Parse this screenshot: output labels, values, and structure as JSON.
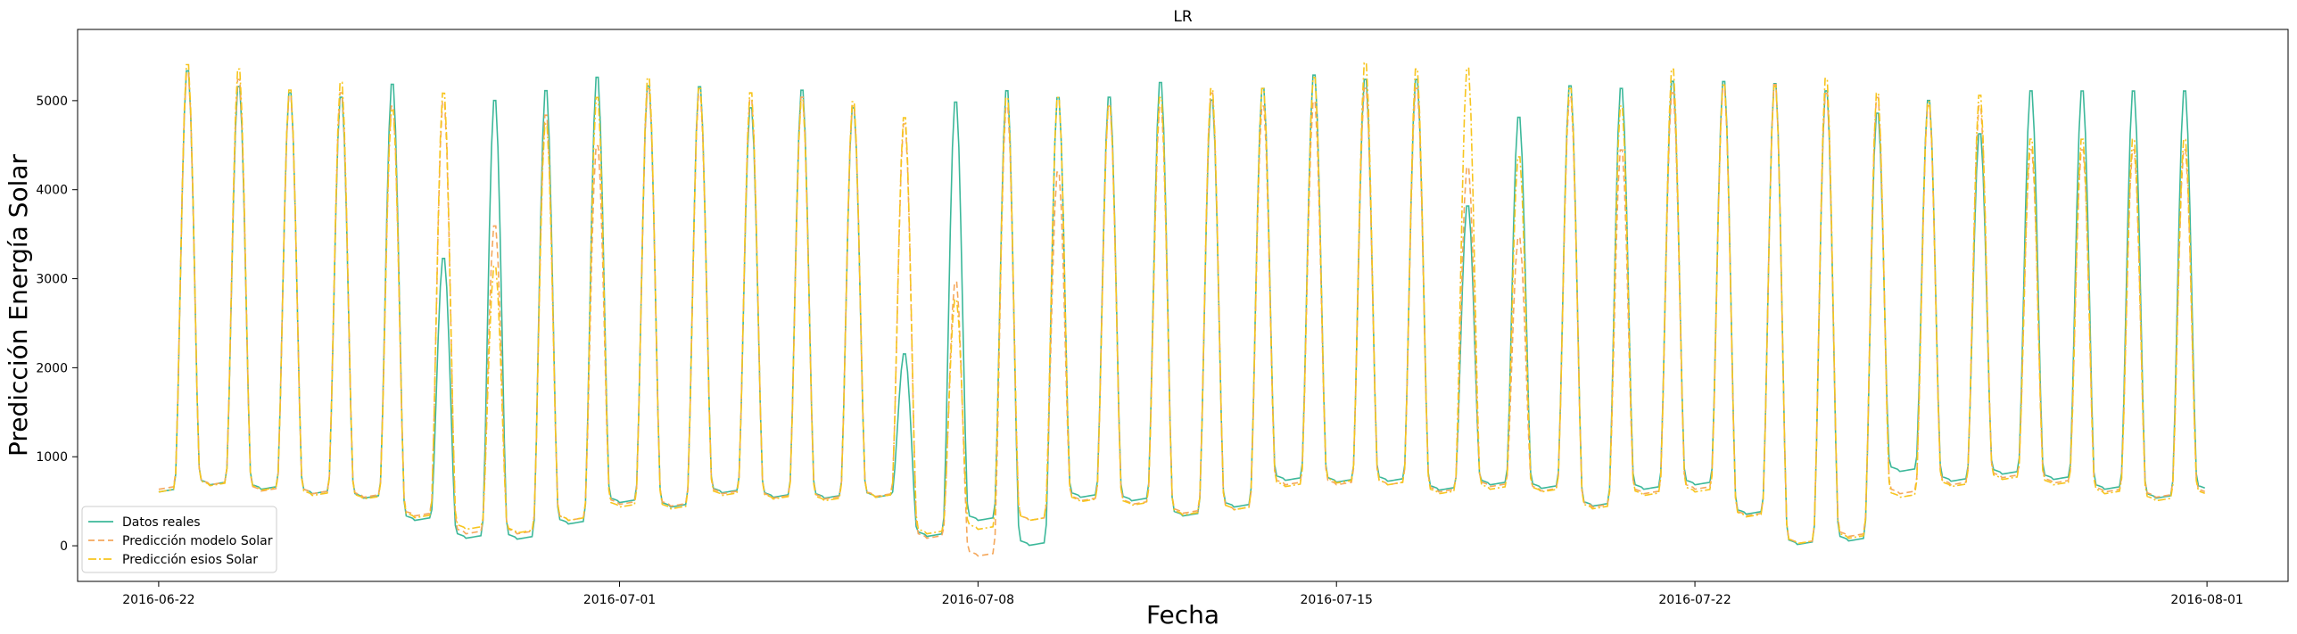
{
  "chart_data": {
    "type": "line",
    "title": "LR",
    "xlabel": "Fecha",
    "ylabel": "Predicción Energía Solar",
    "x_start": "2016-06-22 00:00",
    "x_end": "2016-07-31 23:00",
    "xlim": [
      "2016-06-20 10:00",
      "2016-08-02 14:00"
    ],
    "ylim": [
      -400,
      5800
    ],
    "grid": false,
    "legend_position": "lower-left",
    "xticks": [
      "2016-06-22",
      "2016-07-01",
      "2016-07-08",
      "2016-07-15",
      "2016-07-22",
      "2016-08-01"
    ],
    "yticks": [
      0,
      1000,
      2000,
      3000,
      4000,
      5000
    ],
    "series": [
      {
        "name": "Datos reales",
        "color": "#3cb89a",
        "dash": "solid",
        "daily_night": [
          620,
          700,
          650,
          600,
          550,
          300,
          100,
          90,
          260,
          500,
          450,
          610,
          560,
          550,
          560,
          120,
          300,
          20,
          560,
          520,
          350,
          450,
          750,
          730,
          740,
          640,
          700,
          660,
          460,
          650,
          700,
          370,
          30,
          70,
          850,
          740,
          820,
          760,
          650,
          550,
          640,
          380,
          50,
          510
        ],
        "daily_peak": [
          5400,
          5220,
          5150,
          5100,
          5250,
          3270,
          5070,
          5180,
          5330,
          5230,
          5220,
          4980,
          5180,
          4980,
          2180,
          5050,
          5180,
          5100,
          5100,
          5270,
          5070,
          5200,
          5350,
          5300,
          5300,
          3860,
          4870,
          5230,
          5200,
          5280,
          5280,
          5260,
          5180,
          4920,
          5060,
          4680,
          5170
        ]
      },
      {
        "name": "Predicción modelo Solar",
        "color": "#f5a85c",
        "dash": "dashed",
        "daily_night": [
          650,
          700,
          630,
          600,
          560,
          350,
          150,
          150,
          300,
          480,
          460,
          600,
          550,
          540,
          570,
          100,
          -100,
          300,
          520,
          480,
          380,
          420,
          700,
          700,
          700,
          620,
          680,
          630,
          450,
          600,
          650,
          350,
          40,
          120,
          600,
          700,
          780,
          720,
          620,
          560,
          600,
          360,
          60,
          550
        ],
        "daily_peak": [
          5380,
          5300,
          5120,
          5150,
          5000,
          5050,
          3640,
          4900,
          4550,
          5200,
          5130,
          5080,
          5100,
          5000,
          4800,
          3000,
          5000,
          4250,
          5000,
          5000,
          5150,
          5000,
          5050,
          5200,
          5200,
          4300,
          3500,
          5100,
          4500,
          5150,
          5200,
          5250,
          5150,
          5100,
          5000,
          5000,
          4500
        ]
      },
      {
        "name": "Predicción esios Solar",
        "color": "#f7c51e",
        "dash": "dashdot",
        "daily_night": [
          620,
          690,
          640,
          580,
          540,
          330,
          200,
          160,
          300,
          450,
          430,
          580,
          540,
          520,
          560,
          150,
          200,
          300,
          510,
          470,
          360,
          420,
          680,
          720,
          700,
          600,
          650,
          620,
          430,
          580,
          620,
          340,
          40,
          100,
          560,
          680,
          760,
          700,
          600,
          520,
          580,
          350,
          60,
          540
        ],
        "daily_peak": [
          5470,
          5420,
          5180,
          5270,
          4950,
          5150,
          3180,
          4800,
          5100,
          5320,
          5200,
          5150,
          5070,
          5050,
          4870,
          2800,
          5100,
          5100,
          5000,
          5100,
          5200,
          5200,
          5320,
          5490,
          5420,
          5430,
          4420,
          5200,
          5000,
          5420,
          5240,
          5230,
          5320,
          5150,
          5050,
          5120,
          4620
        ]
      }
    ]
  }
}
